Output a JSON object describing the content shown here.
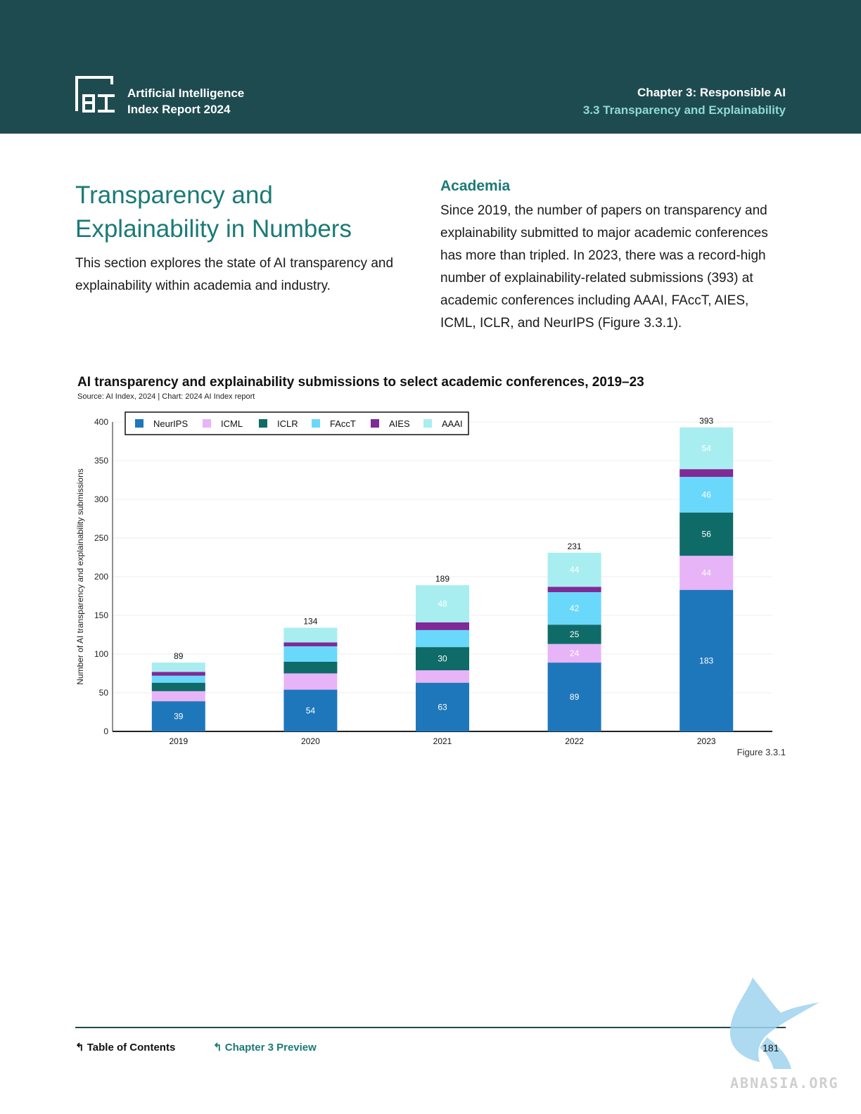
{
  "header": {
    "brand_line1": "Artificial Intelligence",
    "brand_line2": "Index Report 2024",
    "chapter": "Chapter 3: Responsible AI",
    "section": "3.3 Transparency and Explainability"
  },
  "left": {
    "title_line1": "Transparency and",
    "title_line2": "Explainability in Numbers",
    "intro": "This section explores the state of AI transparency and explainability within academia and industry."
  },
  "right": {
    "subhead": "Academia",
    "paragraph": "Since 2019, the number of papers on transparency and explainability submitted to major academic conferences has more than tripled. In 2023, there was a record-high number of explainability-related submissions (393) at academic conferences including AAAI, FAccT, AIES, ICML, ICLR, and NeurIPS (Figure 3.3.1)."
  },
  "chart_data": {
    "type": "bar",
    "stacked": true,
    "title": "AI transparency and explainability submissions to select academic conferences, 2019–23",
    "source": "Source: AI Index, 2024 | Chart: 2024 AI Index report",
    "ylabel": "Number of AI transparency and explainability submissions",
    "xlabel": "",
    "ylim": [
      0,
      400
    ],
    "yticks": [
      0,
      50,
      100,
      150,
      200,
      250,
      300,
      350,
      400
    ],
    "categories": [
      "2019",
      "2020",
      "2021",
      "2022",
      "2023"
    ],
    "totals": [
      89,
      134,
      189,
      231,
      393
    ],
    "legend_position": "top-left",
    "grid": true,
    "series": [
      {
        "name": "NeurIPS",
        "color": "#1f77bb",
        "values": [
          39,
          54,
          63,
          89,
          183
        ],
        "labels": [
          "39",
          "54",
          "63",
          "89",
          "183"
        ]
      },
      {
        "name": "ICML",
        "color": "#e8b4f8",
        "values": [
          13,
          21,
          16,
          24,
          44
        ],
        "labels": [
          "",
          "",
          "",
          "24",
          "44"
        ]
      },
      {
        "name": "ICLR",
        "color": "#0f6b68",
        "values": [
          11,
          15,
          30,
          25,
          56
        ],
        "labels": [
          "",
          "",
          "30",
          "25",
          "56"
        ]
      },
      {
        "name": "FAccT",
        "color": "#6ad8fb",
        "values": [
          9,
          20,
          22,
          42,
          46
        ],
        "labels": [
          "",
          "",
          "",
          "42",
          "46"
        ]
      },
      {
        "name": "AIES",
        "color": "#7f2a96",
        "values": [
          5,
          5,
          10,
          7,
          10
        ],
        "labels": [
          "",
          "",
          "",
          "",
          ""
        ]
      },
      {
        "name": "AAAI",
        "color": "#a8eef0",
        "values": [
          12,
          19,
          48,
          44,
          54
        ],
        "labels": [
          "",
          "",
          "48",
          "44",
          "54"
        ]
      }
    ]
  },
  "figure_label": "Figure 3.3.1",
  "footer": {
    "toc": "Table of Contents",
    "chapter_preview": "Chapter 3 Preview",
    "page": "181"
  },
  "watermark": "ABNASIA.ORG"
}
